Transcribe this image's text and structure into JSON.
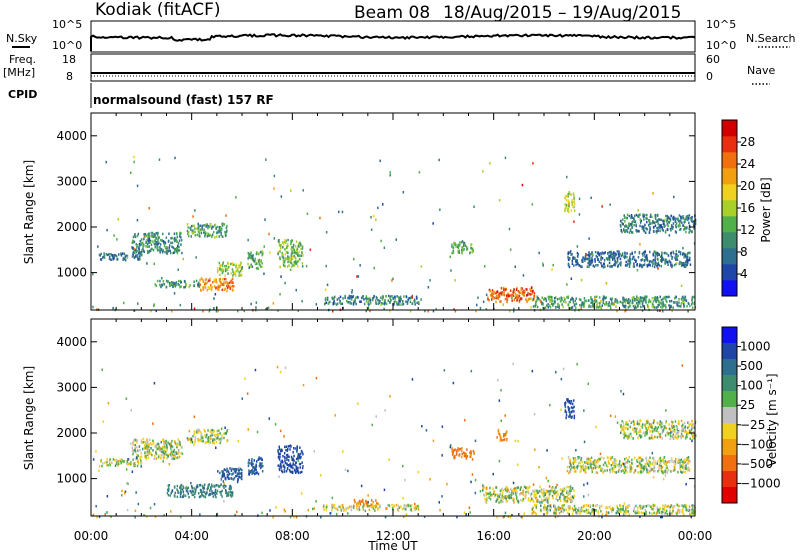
{
  "header": {
    "station": "Kodiak (fitACF)",
    "beam": "Beam 08",
    "dates": "18/Aug/2015 – 19/Aug/2015"
  },
  "params": {
    "nsky_label": "N.Sky",
    "nsky_ticks": [
      "10^5",
      "10^0"
    ],
    "nsearch_label": "N.Search",
    "nsearch_ticks": [
      "10^5",
      "10^0"
    ],
    "freq_label": "Freq.",
    "freq_unit": "[MHz]",
    "freq_ticks": [
      "18",
      "8"
    ],
    "nave_label": "Nave",
    "nave_ticks": [
      "60",
      "0"
    ],
    "cpid_label": "CPID",
    "cpid_value": "normalsound (fast) 157 RF"
  },
  "colors": {
    "power": [
      "#1010f0",
      "#1f46a6",
      "#2e6e8e",
      "#3d8c6e",
      "#52b04a",
      "#a8cf2a",
      "#f0d020",
      "#f0a010",
      "#f07010",
      "#e83010",
      "#d00000"
    ],
    "velocity": [
      "#1010f0",
      "#1f46a6",
      "#2e6e8e",
      "#3d8c6e",
      "#52b04a",
      "#c0c0c0",
      "#f0d020",
      "#f0a010",
      "#f07010",
      "#e83010",
      "#e00000"
    ],
    "axis": "#000000"
  },
  "chart_data": [
    {
      "type": "heatmap",
      "name": "power",
      "title": "",
      "xlabel": "",
      "ylabel": "Slant Range [km]",
      "colorbar_label": "Power [dB]",
      "x_range": [
        "00:00",
        "24:00"
      ],
      "x_ticks": [],
      "ylim": [
        180,
        4500
      ],
      "y_ticks": [
        "1000",
        "2000",
        "3000",
        "4000"
      ],
      "colorbar_ticks": [
        "4",
        "8",
        "12",
        "16",
        "20",
        "24",
        "28"
      ],
      "colorbar_range": [
        0,
        30
      ],
      "grid": false,
      "regions": [
        {
          "t": [
            4.3,
            5.7
          ],
          "r": [
            620,
            900
          ],
          "v": 22
        },
        {
          "t": [
            2.5,
            4.3
          ],
          "r": [
            700,
            850
          ],
          "v": 10
        },
        {
          "t": [
            5.0,
            6.0
          ],
          "r": [
            950,
            1250
          ],
          "v": 14
        },
        {
          "t": [
            1.6,
            3.6
          ],
          "r": [
            1450,
            1900
          ],
          "v": 9
        },
        {
          "t": [
            3.8,
            5.4
          ],
          "r": [
            1800,
            2100
          ],
          "v": 11
        },
        {
          "t": [
            7.4,
            8.4
          ],
          "r": [
            1150,
            1750
          ],
          "v": 13
        },
        {
          "t": [
            6.2,
            6.8
          ],
          "r": [
            1100,
            1500
          ],
          "v": 11
        },
        {
          "t": [
            0.3,
            2.0
          ],
          "r": [
            1300,
            1450
          ],
          "v": 7
        },
        {
          "t": [
            15.7,
            17.6
          ],
          "r": [
            380,
            700
          ],
          "v": 24
        },
        {
          "t": [
            9.2,
            13.0
          ],
          "r": [
            320,
            520
          ],
          "v": 8
        },
        {
          "t": [
            17.5,
            24.0
          ],
          "r": [
            250,
            500
          ],
          "v": 10
        },
        {
          "t": [
            18.9,
            23.8
          ],
          "r": [
            1150,
            1500
          ],
          "v": 7
        },
        {
          "t": [
            14.3,
            15.2
          ],
          "r": [
            1450,
            1700
          ],
          "v": 12
        },
        {
          "t": [
            18.8,
            19.2
          ],
          "r": [
            2350,
            2800
          ],
          "v": 16
        },
        {
          "t": [
            21.0,
            24.0
          ],
          "r": [
            1900,
            2300
          ],
          "v": 8
        }
      ]
    },
    {
      "type": "heatmap",
      "name": "velocity",
      "title": "",
      "xlabel": "Time UT",
      "ylabel": "Slant Range [km]",
      "colorbar_label": "Velocity [m s⁻¹]",
      "x_range": [
        "00:00",
        "24:00"
      ],
      "x_ticks": [
        "00:00",
        "04:00",
        "08:00",
        "12:00",
        "16:00",
        "20:00",
        "00:00"
      ],
      "ylim": [
        180,
        4500
      ],
      "y_ticks": [
        "1000",
        "2000",
        "3000",
        "4000"
      ],
      "colorbar_ticks": [
        "1000",
        "500",
        "100",
        "25",
        "−25",
        "−100",
        "−500",
        "−1000"
      ],
      "grid": false,
      "regions": [
        {
          "t": [
            3.0,
            5.6
          ],
          "r": [
            620,
            900
          ],
          "v": 300
        },
        {
          "t": [
            5.0,
            6.0
          ],
          "r": [
            950,
            1250
          ],
          "v": 600
        },
        {
          "t": [
            7.4,
            8.4
          ],
          "r": [
            1150,
            1750
          ],
          "v": 700
        },
        {
          "t": [
            6.2,
            6.8
          ],
          "r": [
            1100,
            1500
          ],
          "v": 600
        },
        {
          "t": [
            1.6,
            3.6
          ],
          "r": [
            1450,
            1900
          ],
          "v": 0
        },
        {
          "t": [
            3.8,
            5.4
          ],
          "r": [
            1800,
            2100
          ],
          "v": 0
        },
        {
          "t": [
            0.3,
            2.0
          ],
          "r": [
            1300,
            1450
          ],
          "v": 0
        },
        {
          "t": [
            10.4,
            11.4
          ],
          "r": [
            420,
            560
          ],
          "v": -350
        },
        {
          "t": [
            9.2,
            13.0
          ],
          "r": [
            320,
            450
          ],
          "v": -30
        },
        {
          "t": [
            14.3,
            15.2
          ],
          "r": [
            1450,
            1700
          ],
          "v": -350
        },
        {
          "t": [
            16.1,
            16.5
          ],
          "r": [
            1850,
            2100
          ],
          "v": -350
        },
        {
          "t": [
            15.5,
            19.2
          ],
          "r": [
            500,
            850
          ],
          "v": 0
        },
        {
          "t": [
            17.5,
            24.0
          ],
          "r": [
            250,
            450
          ],
          "v": 0
        },
        {
          "t": [
            18.8,
            19.2
          ],
          "r": [
            2350,
            2800
          ],
          "v": 700
        },
        {
          "t": [
            18.9,
            23.8
          ],
          "r": [
            1150,
            1500
          ],
          "v": 0
        },
        {
          "t": [
            21.0,
            24.0
          ],
          "r": [
            1900,
            2300
          ],
          "v": 0
        }
      ]
    }
  ]
}
